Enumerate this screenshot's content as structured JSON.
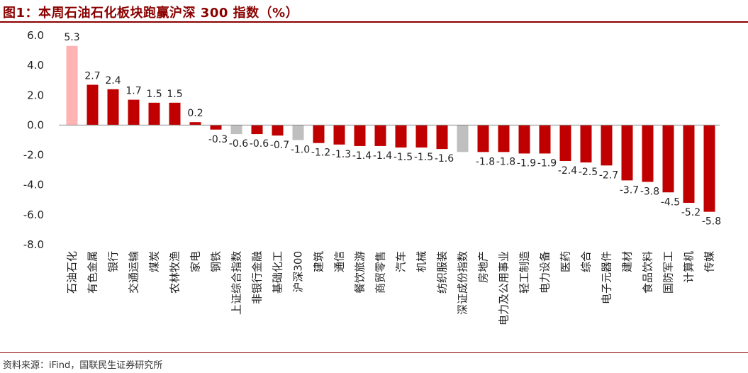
{
  "title": "图1：本周石油石化板块跑赢沪深 300 指数（%）",
  "source": "资料来源：iFind，国联民生证券研究所",
  "colors": {
    "highlight": "#ffb3b3",
    "index": "#bfbfbf",
    "normal": "#c00000",
    "title": "#8b0000"
  },
  "chart_data": {
    "type": "bar",
    "title": "图1：本周石油石化板块跑赢沪深 300 指数（%）",
    "xlabel": "",
    "ylabel": "",
    "ylim": [
      -8.0,
      6.0
    ],
    "yticks": [
      "6.0",
      "4.0",
      "2.0",
      "0.0",
      "-2.0",
      "-4.0",
      "-6.0",
      "-8.0"
    ],
    "grid": false,
    "legend": "none",
    "categories": [
      "石油石化",
      "有色金属",
      "银行",
      "交通运输",
      "煤炭",
      "农林牧渔",
      "家电",
      "钢铁",
      "上证综合指数",
      "非银行金融",
      "基础化工",
      "沪深300",
      "建筑",
      "通信",
      "餐饮旅游",
      "商贸零售",
      "汽车",
      "机械",
      "纺织服装",
      "深证成份指数",
      "房地产",
      "电力及公用事业",
      "轻工制造",
      "电力设备",
      "医药",
      "综合",
      "电子元器件",
      "建材",
      "食品饮料",
      "国防军工",
      "计算机",
      "传媒"
    ],
    "values": [
      5.3,
      2.7,
      2.4,
      1.7,
      1.5,
      1.5,
      0.2,
      -0.3,
      -0.6,
      -0.6,
      -0.7,
      -1.0,
      -1.2,
      -1.3,
      -1.4,
      -1.4,
      -1.5,
      -1.5,
      -1.6,
      -1.8,
      -1.8,
      -1.8,
      -1.9,
      -1.9,
      -2.4,
      -2.5,
      -2.7,
      -3.7,
      -3.8,
      -4.5,
      -5.2,
      -5.8
    ],
    "data_labels": [
      "5.3",
      "2.7",
      "2.4",
      "1.7",
      "1.5",
      "1.5",
      "0.2",
      "-0.3",
      "-0.6",
      "-0.6",
      "-0.7",
      "-1.0",
      "-1.2",
      "-1.3",
      "-1.4",
      "-1.4",
      "-1.5",
      "-1.5",
      "-1.6",
      "-1.8",
      "-1.8",
      "-1.8",
      "-1.9",
      "-1.9",
      "-2.4",
      "-2.5",
      "-2.7",
      "-3.7",
      "-3.8",
      "-4.5",
      "-5.2",
      "-5.8"
    ],
    "labeled": [
      true,
      true,
      true,
      true,
      true,
      true,
      true,
      true,
      true,
      true,
      true,
      true,
      true,
      true,
      true,
      true,
      true,
      true,
      true,
      false,
      true,
      true,
      true,
      true,
      true,
      true,
      true,
      true,
      true,
      true,
      true,
      true
    ],
    "bar_style": [
      "highlight",
      "normal",
      "normal",
      "normal",
      "normal",
      "normal",
      "normal",
      "normal",
      "index",
      "normal",
      "normal",
      "index",
      "normal",
      "normal",
      "normal",
      "normal",
      "normal",
      "normal",
      "normal",
      "index",
      "normal",
      "normal",
      "normal",
      "normal",
      "normal",
      "normal",
      "normal",
      "normal",
      "normal",
      "normal",
      "normal",
      "normal"
    ]
  }
}
